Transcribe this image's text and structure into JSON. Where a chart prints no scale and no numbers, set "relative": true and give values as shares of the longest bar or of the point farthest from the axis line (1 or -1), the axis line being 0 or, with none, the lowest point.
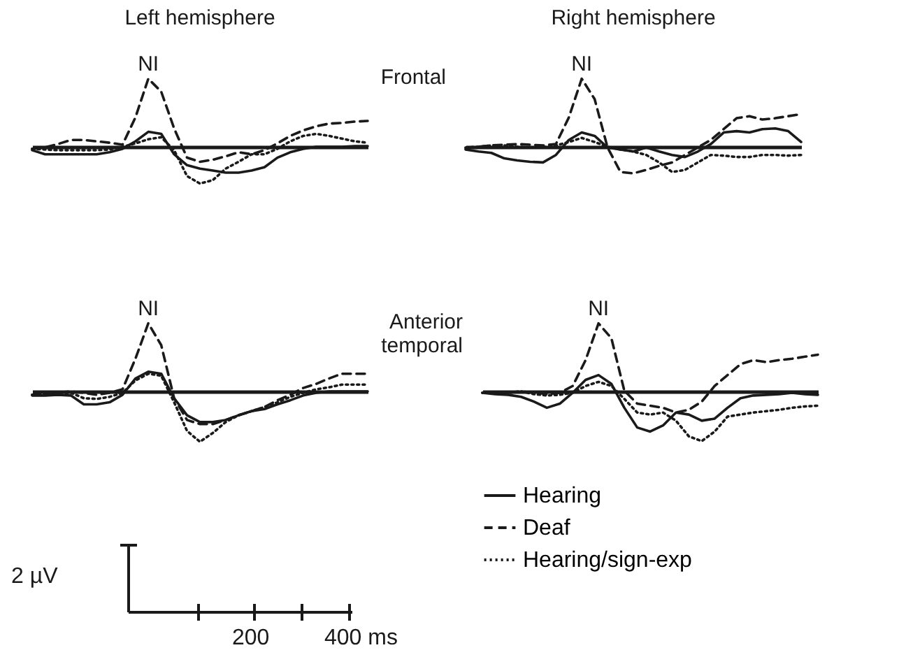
{
  "chart_data": [
    {
      "type": "line",
      "title": "Left hemisphere",
      "relative": true,
      "annotations": [
        {
          "text": "NI",
          "y": 1
        }
      ],
      "categories": [
        null,
        null,
        null,
        null,
        null,
        null,
        null,
        null,
        null,
        null,
        null,
        null,
        null,
        null,
        null,
        null,
        null,
        null,
        null,
        null,
        null,
        null,
        null,
        null,
        null,
        null,
        null
      ],
      "series": [
        {
          "color": "#1a1a1a",
          "line_style": "solid",
          "values": [
            -0.05,
            -0.11,
            -0.11,
            -0.11,
            -0.11,
            -0.11,
            -0.08,
            -0.03,
            0.08,
            0.22,
            0.19,
            -0.11,
            -0.27,
            -0.32,
            -0.35,
            -0.38,
            -0.38,
            -0.35,
            -0.3,
            -0.16,
            -0.08,
            -0.03,
            0,
            0,
            0,
            0.01,
            0.01
          ]
        },
        {
          "color": "#1a1a1a",
          "line_style": "dashed",
          "values": [
            -0.03,
            -0.01,
            0.04,
            0.1,
            0.1,
            0.08,
            0.06,
            0.03,
            0.43,
            1,
            0.81,
            0.27,
            -0.16,
            -0.22,
            -0.19,
            -0.14,
            -0.08,
            -0.11,
            -0.05,
            0.05,
            0.16,
            0.24,
            0.3,
            0.34,
            0.35,
            0.37,
            0.38
          ]
        },
        {
          "color": "#1a1a1a",
          "line_style": "dotted",
          "values": [
            -0.03,
            -0.04,
            -0.05,
            -0.05,
            -0.05,
            -0.05,
            -0.04,
            0,
            0.05,
            0.11,
            0.14,
            -0.05,
            -0.43,
            -0.54,
            -0.49,
            -0.32,
            -0.22,
            -0.11,
            -0.11,
            -0.03,
            0.08,
            0.16,
            0.19,
            0.16,
            0.12,
            0.08,
            0.06
          ]
        }
      ]
    },
    {
      "type": "line",
      "title": "Right hemisphere",
      "ylabel": "Frontal",
      "relative": true,
      "annotations": [
        {
          "text": "NI",
          "y": 1
        }
      ],
      "categories": [
        null,
        null,
        null,
        null,
        null,
        null,
        null,
        null,
        null,
        null,
        null,
        null,
        null,
        null,
        null,
        null,
        null,
        null,
        null,
        null,
        null,
        null,
        null,
        null,
        null,
        null,
        null
      ],
      "series": [
        {
          "color": "#1a1a1a",
          "line_style": "solid",
          "values": [
            -0.04,
            -0.07,
            -0.09,
            -0.17,
            -0.2,
            -0.22,
            -0.23,
            -0.12,
            0.1,
            0.21,
            0.16,
            -0.01,
            -0.04,
            -0.07,
            -0.01,
            -0.07,
            -0.12,
            -0.15,
            -0.07,
            0.04,
            0.21,
            0.23,
            0.21,
            0.26,
            0.27,
            0.23,
            0.07
          ]
        },
        {
          "color": "#1a1a1a",
          "line_style": "dashed",
          "values": [
            -0.02,
            0,
            0.02,
            0.03,
            0.04,
            0.03,
            0.02,
            0.04,
            0.43,
            1,
            0.7,
            -0.01,
            -0.37,
            -0.39,
            -0.34,
            -0.28,
            -0.23,
            -0.12,
            -0.01,
            0.1,
            0.26,
            0.42,
            0.45,
            0.4,
            0.42,
            0.45,
            0.48
          ]
        },
        {
          "color": "#1a1a1a",
          "line_style": "dotted",
          "values": [
            -0.01,
            0,
            0.02,
            0.02,
            0,
            -0.01,
            -0.01,
            0.02,
            0.07,
            0.13,
            0.07,
            0,
            -0.04,
            -0.07,
            -0.12,
            -0.23,
            -0.37,
            -0.34,
            -0.23,
            -0.12,
            -0.13,
            -0.15,
            -0.15,
            -0.12,
            -0.12,
            -0.13,
            -0.12
          ]
        }
      ]
    },
    {
      "type": "line",
      "relative": true,
      "annotations": [
        {
          "text": "NI",
          "y": 1
        }
      ],
      "categories": [
        null,
        null,
        null,
        null,
        null,
        null,
        null,
        null,
        null,
        null,
        null,
        null,
        null,
        null,
        null,
        null,
        null,
        null,
        null,
        null,
        null,
        null,
        null,
        null,
        null,
        null,
        null
      ],
      "series": [
        {
          "color": "#1a1a1a",
          "line_style": "solid",
          "values": [
            -0.06,
            -0.06,
            -0.05,
            -0.06,
            -0.19,
            -0.19,
            -0.16,
            -0.05,
            0.19,
            0.29,
            0.26,
            -0.1,
            -0.35,
            -0.45,
            -0.45,
            -0.42,
            -0.35,
            -0.29,
            -0.26,
            -0.19,
            -0.13,
            -0.06,
            -0.02,
            0,
            0,
            0,
            0
          ]
        },
        {
          "color": "#1a1a1a",
          "line_style": "dashed",
          "values": [
            -0.05,
            -0.03,
            -0.02,
            0,
            -0.02,
            -0.05,
            -0.02,
            0.03,
            0.48,
            1,
            0.68,
            -0.1,
            -0.42,
            -0.48,
            -0.48,
            -0.42,
            -0.35,
            -0.29,
            -0.23,
            -0.13,
            -0.05,
            0.05,
            0.11,
            0.19,
            0.26,
            0.26,
            0.26
          ]
        },
        {
          "color": "#1a1a1a",
          "line_style": "dotted",
          "values": [
            -0.05,
            -0.05,
            -0.03,
            -0.02,
            -0.1,
            -0.11,
            -0.08,
            -0.02,
            0.16,
            0.26,
            0.23,
            -0.16,
            -0.58,
            -0.74,
            -0.61,
            -0.45,
            -0.35,
            -0.29,
            -0.23,
            -0.16,
            -0.08,
            -0.02,
            0.03,
            0.06,
            0.1,
            0.1,
            0.1
          ]
        }
      ]
    },
    {
      "type": "line",
      "ylabel": "Anterior temporal",
      "relative": true,
      "legend": "bottom",
      "annotations": [
        {
          "text": "NI",
          "y": 1
        }
      ],
      "categories": [
        null,
        null,
        null,
        null,
        null,
        null,
        null,
        null,
        null,
        null,
        null,
        null,
        null,
        null,
        null,
        null,
        null,
        null,
        null,
        null,
        null,
        null,
        null,
        null,
        null,
        null,
        null
      ],
      "series": [
        {
          "name": "Hearing",
          "color": "#1a1a1a",
          "line_style": "solid",
          "values": [
            -0.02,
            -0.04,
            -0.05,
            -0.08,
            -0.15,
            -0.24,
            -0.18,
            -0.02,
            0.17,
            0.24,
            0.11,
            -0.24,
            -0.53,
            -0.59,
            -0.5,
            -0.31,
            -0.34,
            -0.43,
            -0.4,
            -0.24,
            -0.1,
            -0.06,
            -0.05,
            -0.04,
            -0.02,
            -0.04,
            -0.05
          ]
        },
        {
          "name": "Deaf",
          "color": "#1a1a1a",
          "line_style": "dashed",
          "values": [
            -0.02,
            -0.02,
            -0.02,
            0,
            -0.02,
            -0.04,
            -0.02,
            0.08,
            0.46,
            1,
            0.78,
            0.01,
            -0.18,
            -0.21,
            -0.24,
            -0.31,
            -0.27,
            -0.15,
            0.08,
            0.24,
            0.4,
            0.46,
            0.43,
            0.46,
            0.48,
            0.51,
            0.54
          ]
        },
        {
          "name": "Hearing/sign-exp",
          "color": "#1a1a1a",
          "line_style": "dotted",
          "values": [
            -0.02,
            -0.02,
            -0.02,
            0,
            -0.04,
            -0.06,
            -0.05,
            -0.02,
            0.08,
            0.14,
            0.08,
            -0.11,
            -0.31,
            -0.34,
            -0.31,
            -0.43,
            -0.66,
            -0.73,
            -0.59,
            -0.37,
            -0.34,
            -0.31,
            -0.29,
            -0.27,
            -0.24,
            -0.22,
            -0.21
          ]
        }
      ]
    },
    {
      "type": "other",
      "annotations": [
        "2 µV",
        "200",
        "400 ms"
      ]
    }
  ]
}
